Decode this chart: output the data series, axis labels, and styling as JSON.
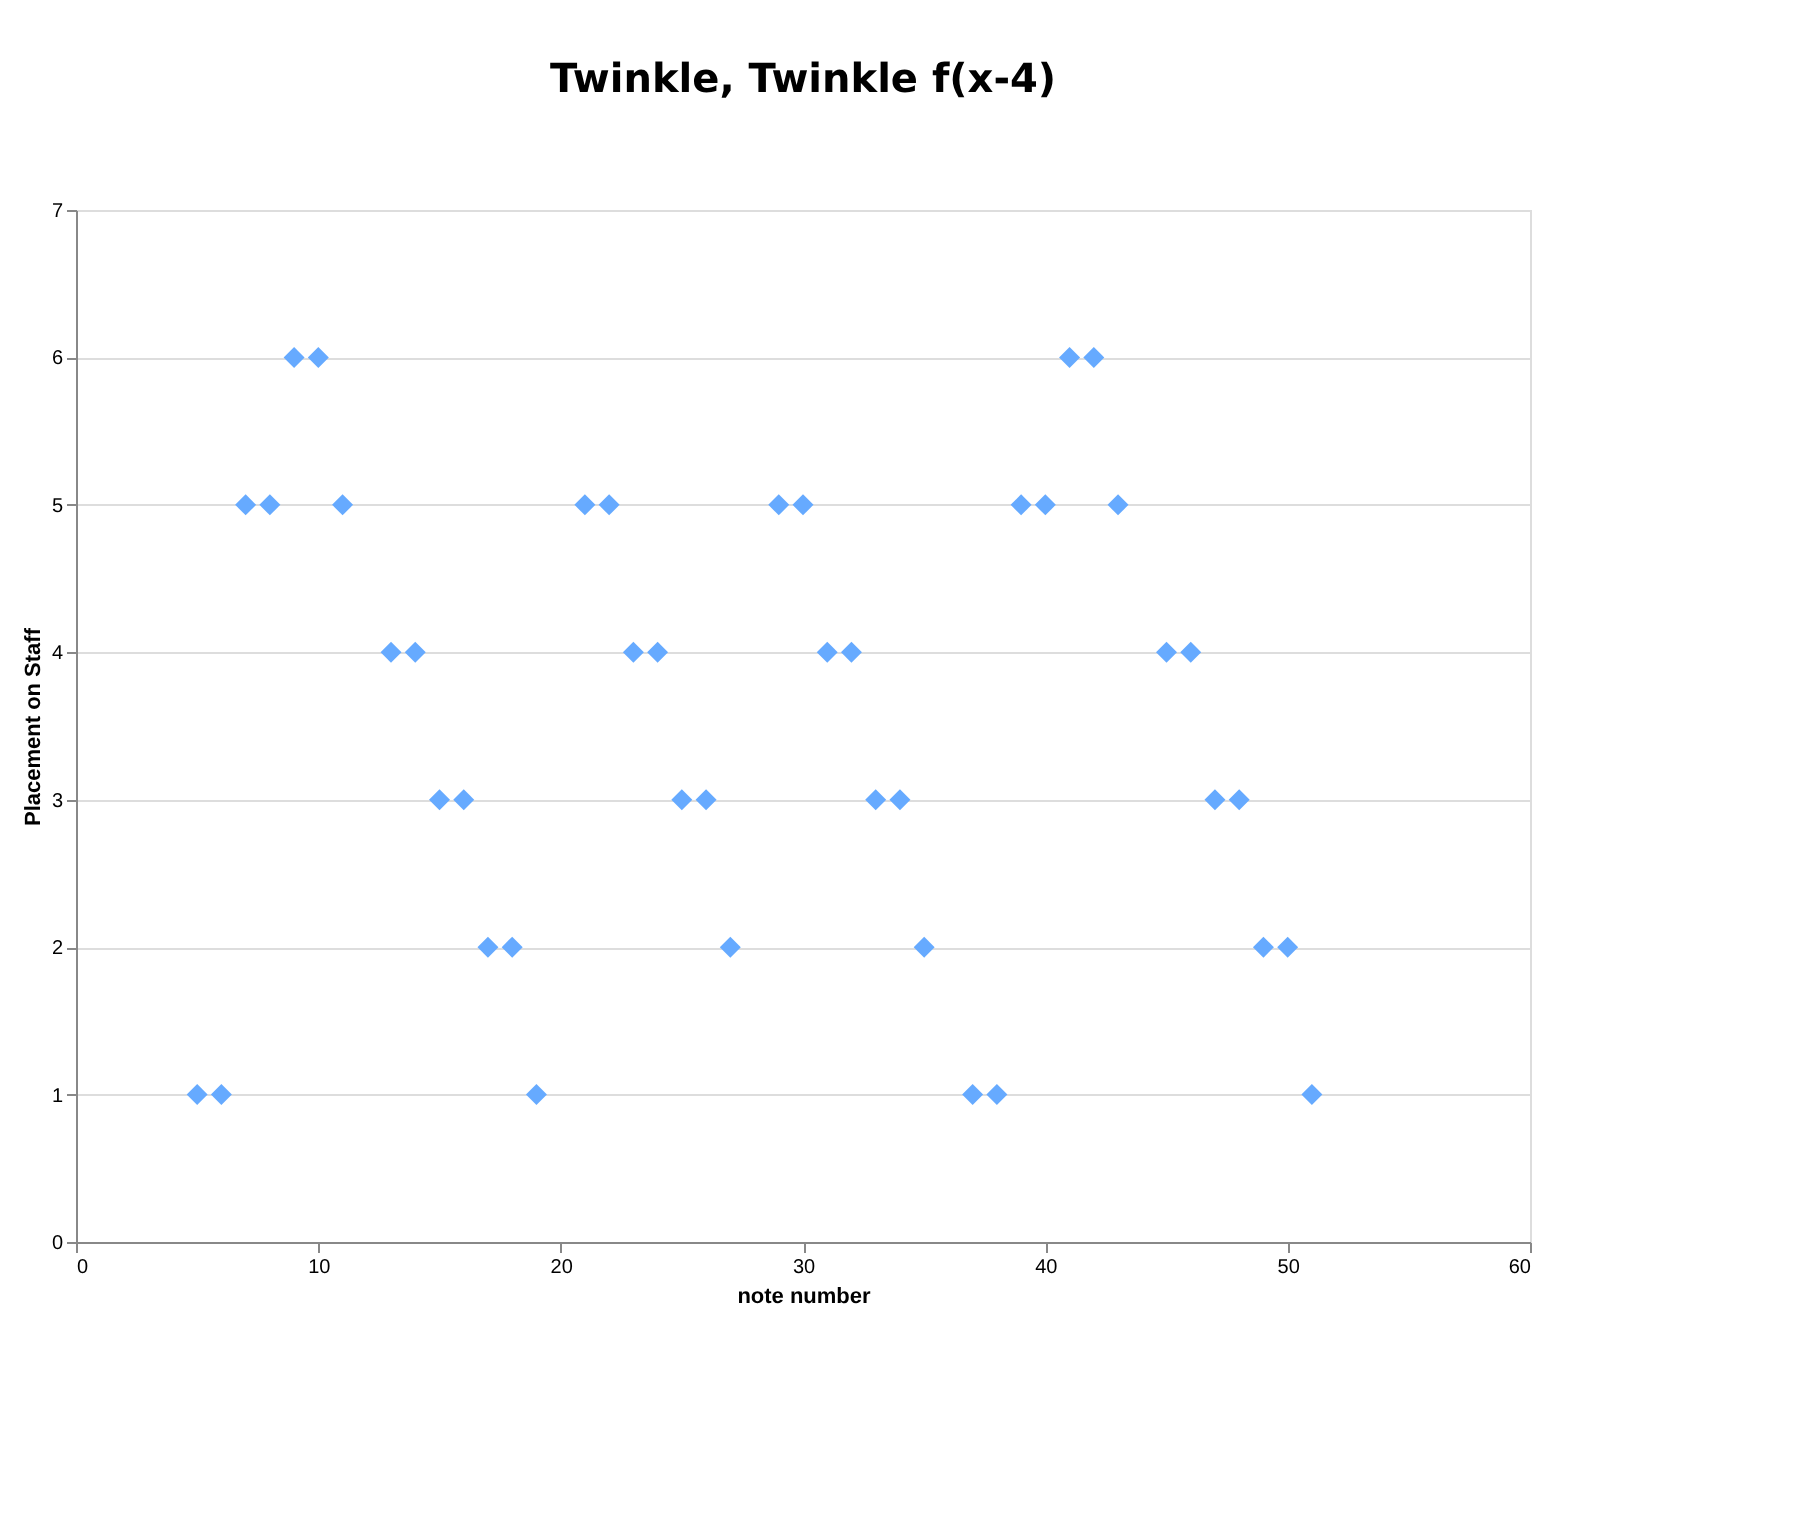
{
  "chart_data": {
    "type": "scatter",
    "title": "Twinkle, Twinkle f(x-4)",
    "xlabel": "note number",
    "ylabel": "Placement on Staff",
    "x": [
      5,
      6,
      7,
      8,
      9,
      10,
      11,
      13,
      14,
      15,
      16,
      17,
      18,
      19,
      21,
      22,
      23,
      24,
      25,
      26,
      27,
      29,
      30,
      31,
      32,
      33,
      34,
      35,
      37,
      38,
      39,
      40,
      41,
      42,
      43,
      45,
      46,
      47,
      48,
      49,
      50,
      51
    ],
    "series": [
      {
        "color": "#66aaff",
        "values": [
          1,
          1,
          5,
          5,
          6,
          6,
          5,
          4,
          4,
          3,
          3,
          2,
          2,
          1,
          5,
          5,
          4,
          4,
          3,
          3,
          2,
          5,
          5,
          4,
          4,
          3,
          3,
          2,
          1,
          1,
          5,
          5,
          6,
          6,
          5,
          4,
          4,
          3,
          3,
          2,
          2,
          1
        ]
      }
    ],
    "xlim": [
      0,
      60
    ],
    "xticks": [
      0,
      10,
      20,
      30,
      40,
      50,
      60
    ],
    "ylim": [
      0,
      7
    ],
    "yticks": [
      0,
      1,
      2,
      3,
      4,
      5,
      6,
      7
    ],
    "grid": "y",
    "legend": false,
    "marker": "diamond"
  }
}
